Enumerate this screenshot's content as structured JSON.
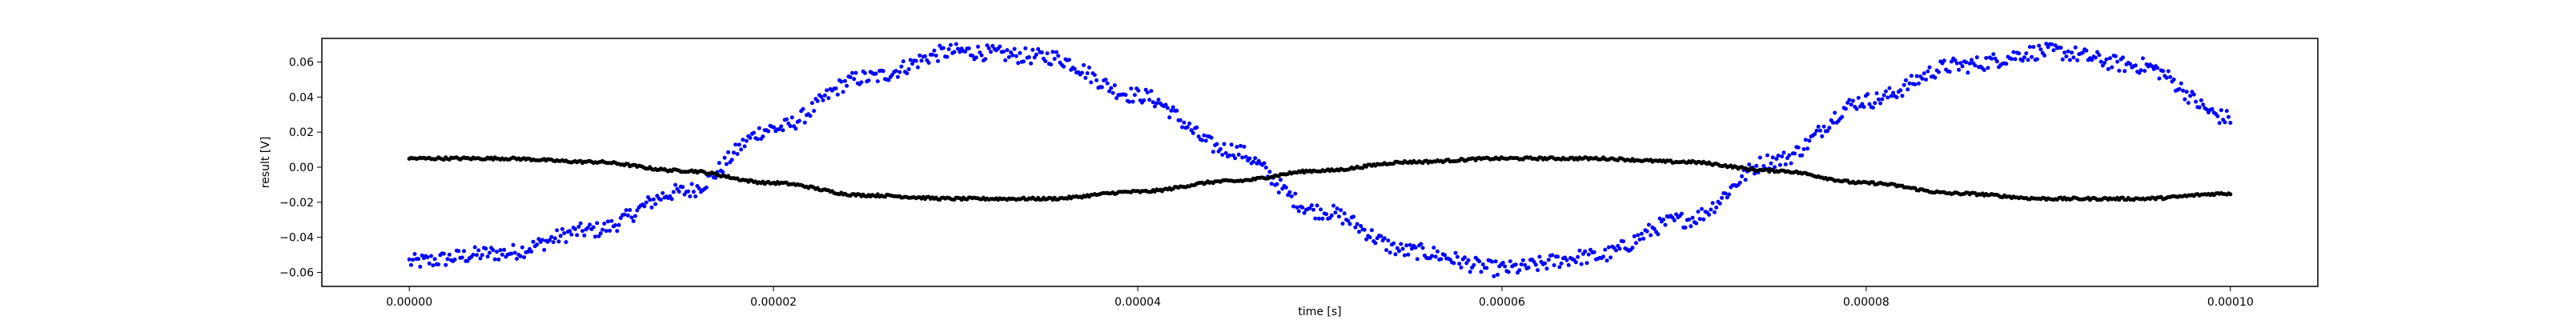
{
  "chart_data": {
    "type": "scatter",
    "xlabel": "time [s]",
    "ylabel": "result [V]",
    "xlim": [
      -4.8e-06,
      0.0001048
    ],
    "ylim": [
      -0.068,
      0.0735
    ],
    "x_ticks": [
      0.0,
      2e-05,
      4e-05,
      6e-05,
      8e-05,
      0.0001
    ],
    "x_tick_labels": [
      "0.00000",
      "0.00002",
      "0.00004",
      "0.00006",
      "0.00008",
      "0.00010"
    ],
    "y_ticks": [
      -0.06,
      -0.04,
      -0.02,
      0.0,
      0.02,
      0.04,
      0.06
    ],
    "y_tick_labels": [
      "−0.06",
      "−0.04",
      "−0.02",
      "0.00",
      "0.02",
      "0.04",
      "0.06"
    ],
    "grid": false,
    "legend": "none",
    "series": [
      {
        "color": "#0000ff",
        "marker": "dot",
        "x": [
          0.0,
          5e-06,
          1e-05,
          1.5e-05,
          2e-05,
          2.5e-05,
          3e-05,
          3.5e-05,
          4e-05,
          4.5e-05,
          5e-05,
          5.5e-05,
          6e-05,
          6.5e-05,
          7e-05,
          7.5e-05,
          8e-05,
          8.5e-05,
          9e-05,
          9.5e-05,
          0.0001
        ],
        "y": [
          -0.054,
          -0.049,
          -0.036,
          -0.014,
          0.022,
          0.051,
          0.066,
          0.063,
          0.041,
          0.01,
          -0.025,
          -0.048,
          -0.058,
          -0.051,
          -0.03,
          0.004,
          0.038,
          0.058,
          0.066,
          0.058,
          0.028
        ],
        "noise": 0.0045
      },
      {
        "color": "#000000",
        "marker": "dot",
        "x": [
          0.0,
          5e-06,
          1e-05,
          1.5e-05,
          2e-05,
          2.5e-05,
          3e-05,
          3.5e-05,
          4e-05,
          4.5e-05,
          5e-05,
          5.5e-05,
          6e-05,
          6.5e-05,
          7e-05,
          7.5e-05,
          8e-05,
          8.5e-05,
          9e-05,
          9.5e-05,
          0.0001
        ],
        "y": [
          0.005,
          0.005,
          0.003,
          -0.002,
          -0.009,
          -0.016,
          -0.018,
          -0.018,
          -0.014,
          -0.008,
          -0.002,
          0.003,
          0.005,
          0.005,
          0.003,
          -0.002,
          -0.009,
          -0.015,
          -0.018,
          -0.018,
          -0.015
        ],
        "noise": 0.0007
      }
    ]
  }
}
